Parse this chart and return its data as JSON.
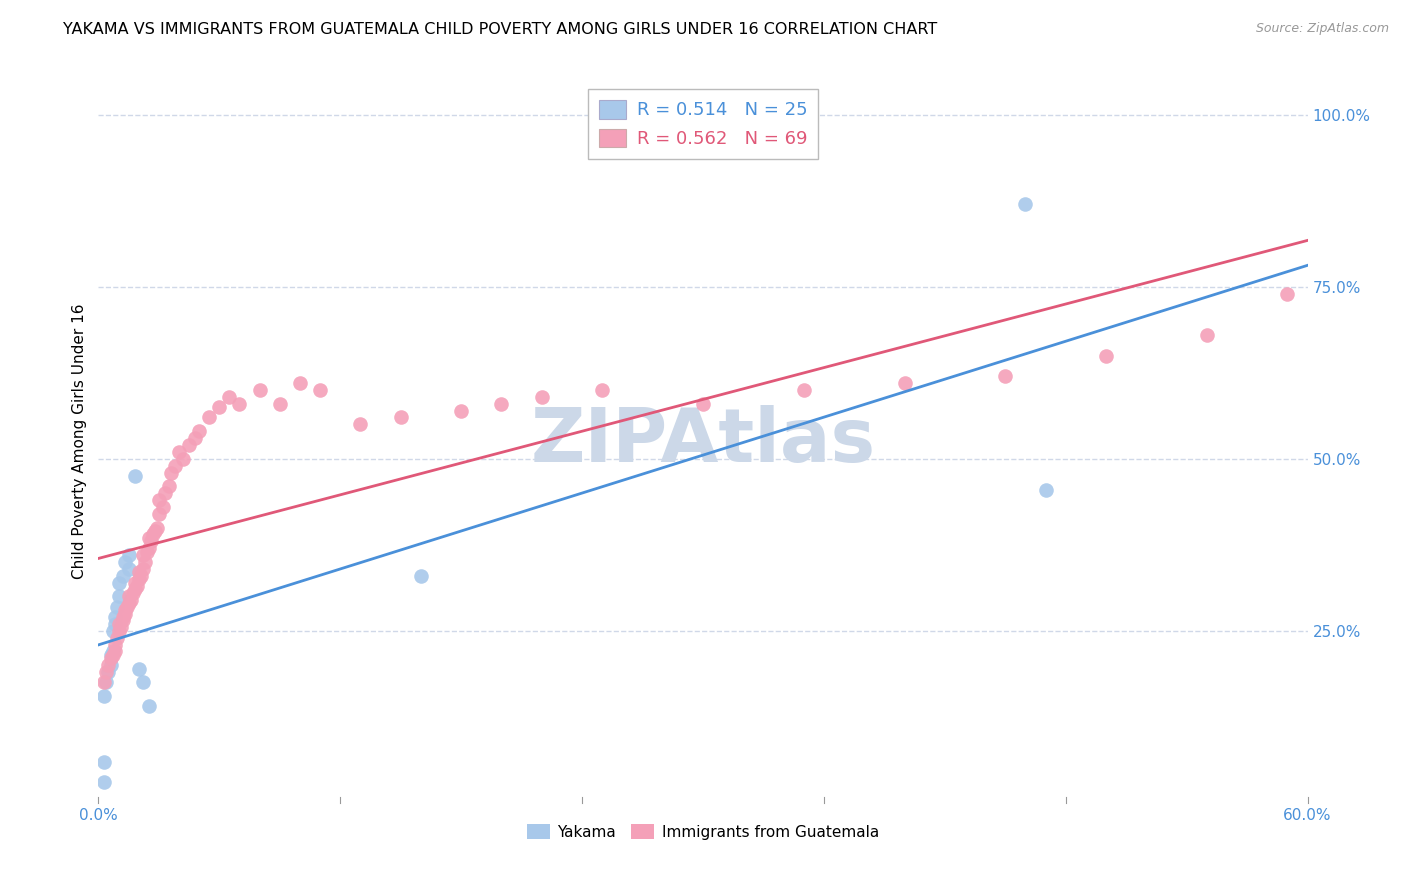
{
  "title": "YAKAMA VS IMMIGRANTS FROM GUATEMALA CHILD POVERTY AMONG GIRLS UNDER 16 CORRELATION CHART",
  "source": "Source: ZipAtlas.com",
  "ylabel": "Child Poverty Among Girls Under 16",
  "xlim": [
    0.0,
    0.6
  ],
  "ylim": [
    0.0,
    1.05
  ],
  "legend1_R": "0.514",
  "legend1_N": "25",
  "legend2_R": "0.562",
  "legend2_N": "69",
  "yakama_color": "#a8c8ea",
  "guatemala_color": "#f4a0b8",
  "yakama_line_color": "#4a90d9",
  "guatemala_line_color": "#e05878",
  "watermark": "ZIPAtlas",
  "watermark_color": "#ccd8e8",
  "title_fontsize": 11.5,
  "axis_label_fontsize": 11,
  "tick_fontsize": 11,
  "legend_fontsize": 13,
  "background_color": "#ffffff",
  "grid_color": "#d0d8e8",
  "yakama_x": [
    0.003,
    0.003,
    0.003,
    0.004,
    0.005,
    0.006,
    0.006,
    0.007,
    0.007,
    0.008,
    0.008,
    0.009,
    0.01,
    0.01,
    0.012,
    0.013,
    0.015,
    0.015,
    0.018,
    0.02,
    0.022,
    0.025,
    0.16,
    0.46,
    0.47
  ],
  "yakama_y": [
    0.03,
    0.06,
    0.155,
    0.175,
    0.19,
    0.2,
    0.215,
    0.22,
    0.25,
    0.26,
    0.27,
    0.285,
    0.3,
    0.32,
    0.33,
    0.35,
    0.34,
    0.36,
    0.475,
    0.195,
    0.175,
    0.14,
    0.33,
    0.87,
    0.455
  ],
  "guatemala_x": [
    0.003,
    0.004,
    0.005,
    0.006,
    0.007,
    0.008,
    0.008,
    0.009,
    0.01,
    0.01,
    0.011,
    0.012,
    0.012,
    0.013,
    0.013,
    0.014,
    0.015,
    0.015,
    0.016,
    0.017,
    0.018,
    0.018,
    0.019,
    0.02,
    0.02,
    0.021,
    0.022,
    0.022,
    0.023,
    0.024,
    0.025,
    0.025,
    0.026,
    0.027,
    0.028,
    0.029,
    0.03,
    0.03,
    0.032,
    0.033,
    0.035,
    0.036,
    0.038,
    0.04,
    0.042,
    0.045,
    0.048,
    0.05,
    0.055,
    0.06,
    0.065,
    0.07,
    0.08,
    0.09,
    0.1,
    0.11,
    0.13,
    0.15,
    0.18,
    0.2,
    0.22,
    0.25,
    0.3,
    0.35,
    0.4,
    0.45,
    0.5,
    0.55,
    0.59
  ],
  "guatemala_y": [
    0.175,
    0.19,
    0.2,
    0.21,
    0.215,
    0.22,
    0.23,
    0.24,
    0.25,
    0.26,
    0.255,
    0.265,
    0.27,
    0.275,
    0.28,
    0.285,
    0.29,
    0.3,
    0.295,
    0.305,
    0.31,
    0.32,
    0.315,
    0.325,
    0.335,
    0.33,
    0.34,
    0.36,
    0.35,
    0.365,
    0.37,
    0.385,
    0.38,
    0.39,
    0.395,
    0.4,
    0.42,
    0.44,
    0.43,
    0.45,
    0.46,
    0.48,
    0.49,
    0.51,
    0.5,
    0.52,
    0.53,
    0.54,
    0.56,
    0.575,
    0.59,
    0.58,
    0.6,
    0.58,
    0.61,
    0.6,
    0.55,
    0.56,
    0.57,
    0.58,
    0.59,
    0.6,
    0.58,
    0.6,
    0.61,
    0.62,
    0.65,
    0.68,
    0.74
  ]
}
